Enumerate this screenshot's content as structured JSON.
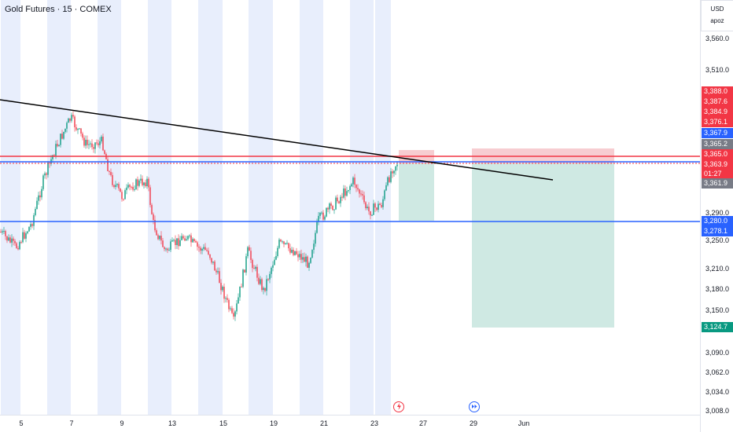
{
  "symbol": "Gold Futures · 15 · COMEX",
  "currency": "USD",
  "currency_sub": "apoz",
  "price_ticks": [
    "3,560.0",
    "3,510.0",
    "3,290.0",
    "3,250.0",
    "3,210.0",
    "3,180.0",
    "3,150.0",
    "3,090.0",
    "3,062.0",
    "3,034.0",
    "3,008.0"
  ],
  "price_tags": [
    {
      "label": "3,388.0",
      "color": "#f23645"
    },
    {
      "label": "3,387.6",
      "color": "#f23645"
    },
    {
      "label": "3,384.9",
      "color": "#f23645"
    },
    {
      "label": "3,376.1",
      "color": "#f23645"
    },
    {
      "label": "3,367.9",
      "color": "#2962ff"
    },
    {
      "label": "3,365.2",
      "color": "#787b86"
    },
    {
      "label": "3,365.0",
      "color": "#f23645"
    },
    {
      "label": "3,363.9",
      "color": "#f23645"
    },
    {
      "label": "01:27",
      "color": "#f23645"
    },
    {
      "label": "3,361.9",
      "color": "#787b86"
    },
    {
      "label": "3,280.0",
      "color": "#2962ff"
    },
    {
      "label": "3,278.1",
      "color": "#2962ff"
    },
    {
      "label": "3,124.7",
      "color": "#089981"
    }
  ],
  "time_ticks": [
    "5",
    "7",
    "9",
    "13",
    "15",
    "19",
    "21",
    "23",
    "27",
    "29",
    "Jun"
  ],
  "icons": {
    "event_1": "lightning-event-icon",
    "event_2": "fast-forward-event-icon"
  },
  "colors": {
    "up": "#089981",
    "down": "#f23645",
    "session": "#e8eefc",
    "line_blue": "#2962ff",
    "line_red": "#f23645",
    "trend": "#000000",
    "target_zone": "#cfe9e3",
    "stop_zone": "#f7cdd1"
  }
}
